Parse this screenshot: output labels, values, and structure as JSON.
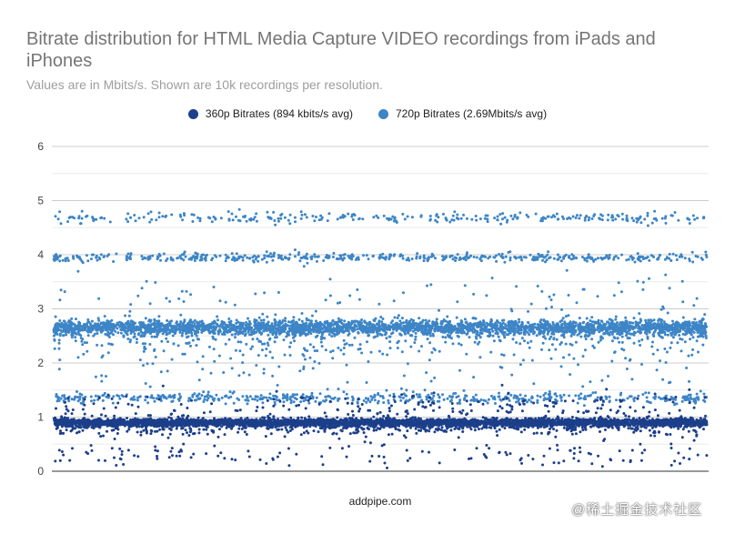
{
  "chart_data": {
    "type": "scatter",
    "title": "Bitrate distribution for HTML Media Capture VIDEO recordings from iPads and iPhones",
    "subtitle": "Values are in Mbits/s. Shown are 10k recordings per resolution.",
    "xlabel": "addpipe.com",
    "ylabel": "",
    "ylim": [
      0,
      6
    ],
    "yticks": [
      "0",
      "1",
      "2",
      "3",
      "4",
      "5",
      "6"
    ],
    "grid": true,
    "legend_position": "top",
    "series": [
      {
        "name": "360p Bitrates (894 kbits/s avg)",
        "color": "#1c3f8a",
        "n": 10000,
        "values": "sampled-distribution: main band ~0.9, sparse 0.15-1.6"
      },
      {
        "name": "720p Bitrates (2.69Mbits/s avg)",
        "color": "#3d85c6",
        "n": 10000,
        "values": "sampled-distribution: main band ~2.65, secondary bands ~1.35, ~3.95, ~4.7"
      }
    ],
    "distribution": {
      "s360": {
        "bands": [
          [
            0.9,
            0.035,
            0.8
          ],
          [
            0.82,
            0.08,
            0.12
          ],
          [
            1.15,
            0.15,
            0.05
          ],
          [
            0.3,
            0.12,
            0.03
          ]
        ]
      },
      "s720": {
        "bands": [
          [
            2.65,
            0.07,
            0.62
          ],
          [
            2.45,
            0.2,
            0.08
          ],
          [
            1.35,
            0.05,
            0.1
          ],
          [
            3.95,
            0.04,
            0.1
          ],
          [
            4.68,
            0.05,
            0.06
          ],
          [
            3.2,
            0.25,
            0.02
          ],
          [
            1.9,
            0.25,
            0.02
          ]
        ]
      }
    }
  },
  "watermark": "@稀土掘金技术社区"
}
